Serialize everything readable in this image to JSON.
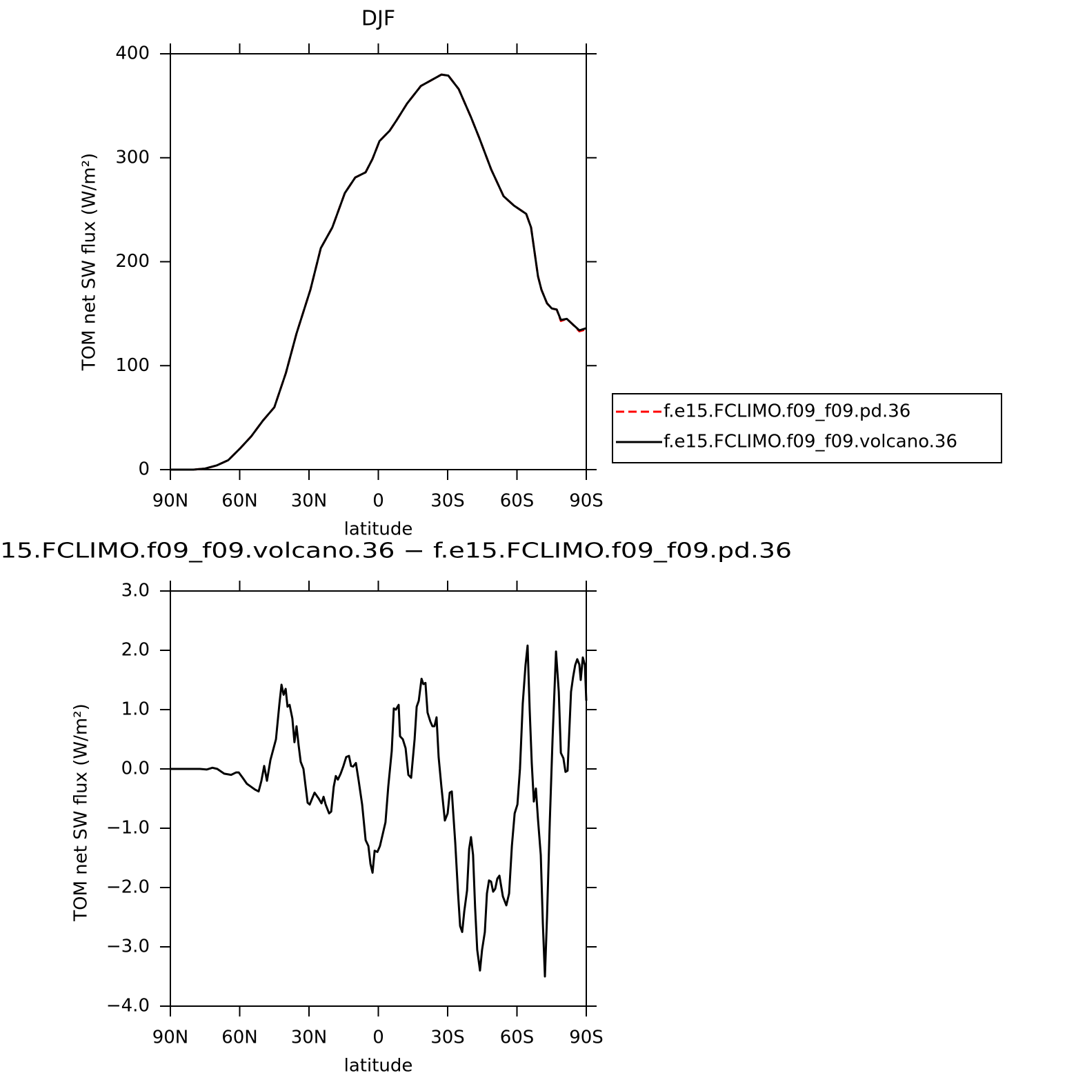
{
  "chart_data": [
    {
      "type": "line",
      "title": "DJF",
      "xlabel": "latitude",
      "ylabel": "TOM net SW flux (W/m²)",
      "x": [
        90,
        80,
        75,
        70,
        65,
        60,
        55,
        50,
        45,
        40,
        35.4,
        29.4,
        24.9,
        19.9,
        14.5,
        10,
        5.5,
        2.5,
        -0.5,
        -4.9,
        -7.9,
        -12.4,
        -18.4,
        -27.3,
        -30.3,
        -34.8,
        -40.1,
        -43.7,
        -48.8,
        -54.2,
        -58.7,
        -64,
        -66.1,
        -69.1,
        -70.6,
        -73,
        -75.1,
        -77.2,
        -79,
        -81.6,
        -84,
        -87,
        -90
      ],
      "series": [
        {
          "name": "f.e15.FCLIMO.f09_f09.pd.36",
          "color": "#ff0000",
          "linestyle": "dashed",
          "values": [
            0,
            0,
            1,
            4,
            9,
            20,
            32,
            47,
            60,
            93,
            131,
            173,
            213,
            233,
            266,
            281,
            286,
            299,
            316,
            326,
            336,
            352,
            369,
            380,
            379,
            366,
            339,
            319,
            289,
            263,
            254,
            246,
            233,
            186,
            173,
            160,
            155,
            154,
            143,
            145,
            140,
            133,
            135
          ]
        },
        {
          "name": "f.e15.FCLIMO.f09_f09.volcano.36",
          "color": "#000000",
          "linestyle": "solid",
          "values": [
            0,
            0,
            1,
            4,
            9,
            20,
            32,
            47,
            60,
            93,
            131,
            173,
            213,
            233,
            266,
            281,
            286,
            299,
            316,
            326,
            336,
            352,
            369,
            380,
            379,
            366,
            339,
            319,
            289,
            263,
            254,
            246,
            233,
            186,
            173,
            160,
            155,
            154,
            144,
            145,
            140,
            134,
            136
          ]
        }
      ],
      "xlim": [
        90,
        -90
      ],
      "xticks": [
        {
          "value": 90,
          "label": "90N"
        },
        {
          "value": 60,
          "label": "60N"
        },
        {
          "value": 30,
          "label": "30N"
        },
        0,
        {
          "value": -30,
          "label": "30S"
        },
        {
          "value": -60,
          "label": "60S"
        },
        {
          "value": -90,
          "label": "90S"
        }
      ],
      "ylim": [
        0,
        400
      ],
      "yticks": [
        0,
        100,
        200,
        300,
        400
      ],
      "grid": false,
      "legend": "right"
    },
    {
      "type": "line",
      "title": "15.FCLIMO.f09_f09.volcano.36 − f.e15.FCLIMO.f09_f09.pd.36",
      "xlabel": "latitude",
      "ylabel": "TOM net SW flux (W/m²)",
      "x": [
        90,
        77.2,
        74.2,
        71.8,
        69.7,
        66.7,
        63.7,
        61.6,
        60.4,
        58.7,
        56.9,
        55.1,
        53.3,
        51.8,
        50.6,
        49.4,
        48.2,
        46.7,
        44.3,
        42.8,
        41.9,
        41.0,
        40.1,
        39.3,
        38.4,
        37.2,
        36.3,
        35.4,
        34.5,
        33.6,
        32.4,
        30.6,
        29.7,
        27.6,
        25.8,
        24.6,
        23.7,
        22.8,
        21.3,
        20.4,
        19.3,
        18.4,
        17.5,
        16.3,
        15.1,
        13.9,
        12.7,
        11.8,
        10.9,
        9.7,
        8.5,
        7.0,
        5.5,
        4.3,
        3.4,
        2.5,
        1.6,
        0.4,
        -0.7,
        -1.9,
        -3.1,
        -4.3,
        -5.8,
        -6.7,
        -7.6,
        -8.8,
        -9.4,
        -10.6,
        -11.8,
        -13.0,
        -14.2,
        -15.7,
        -16.6,
        -17.5,
        -18.7,
        -19.5,
        -20.4,
        -21.3,
        -22.5,
        -23.4,
        -24.3,
        -25.2,
        -26.1,
        -27.3,
        -28.8,
        -30.0,
        -30.9,
        -31.8,
        -33.3,
        -34.5,
        -35.4,
        -36.3,
        -37.2,
        -38.4,
        -39.3,
        -40.1,
        -41.0,
        -41.9,
        -42.8,
        -44.0,
        -44.9,
        -46.1,
        -47.0,
        -47.9,
        -48.8,
        -49.7,
        -50.6,
        -51.5,
        -52.4,
        -53.9,
        -55.4,
        -56.6,
        -57.8,
        -59.0,
        -60.2,
        -61.3,
        -62.5,
        -63.7,
        -64.6,
        -65.5,
        -66.4,
        -67.3,
        -68.2,
        -69.1,
        -70.3,
        -71.2,
        -72.1,
        -73.0,
        -74.2,
        -75.4,
        -76.9,
        -78.1,
        -79.0,
        -80.1,
        -81.0,
        -81.9,
        -83.4,
        -84.3,
        -85.2,
        -86.1,
        -87.0,
        -87.6,
        -88.5,
        -89.4,
        -90
      ],
      "values": [
        0,
        0,
        -0.01,
        0.02,
        0,
        -0.08,
        -0.1,
        -0.06,
        -0.06,
        -0.15,
        -0.25,
        -0.3,
        -0.35,
        -0.38,
        -0.2,
        0.05,
        -0.2,
        0.15,
        0.5,
        1.1,
        1.42,
        1.25,
        1.35,
        1.05,
        1.08,
        0.85,
        0.45,
        0.72,
        0.4,
        0.12,
        0,
        -0.57,
        -0.6,
        -0.4,
        -0.5,
        -0.58,
        -0.47,
        -0.6,
        -0.75,
        -0.72,
        -0.3,
        -0.12,
        -0.18,
        -0.08,
        0.05,
        0.2,
        0.22,
        0.05,
        0.04,
        0.1,
        -0.2,
        -0.6,
        -1.2,
        -1.3,
        -1.6,
        -1.75,
        -1.38,
        -1.4,
        -1.3,
        -1.1,
        -0.9,
        -0.3,
        0.3,
        1.02,
        1.0,
        1.08,
        0.55,
        0.5,
        0.35,
        -0.1,
        -0.15,
        0.5,
        1.05,
        1.15,
        1.52,
        1.43,
        1.45,
        0.95,
        0.8,
        0.72,
        0.72,
        0.87,
        0.2,
        -0.3,
        -0.87,
        -0.75,
        -0.4,
        -0.38,
        -1.25,
        -2.1,
        -2.65,
        -2.75,
        -2.4,
        -2.05,
        -1.35,
        -1.15,
        -1.45,
        -2.35,
        -3.05,
        -3.4,
        -3.05,
        -2.75,
        -2.1,
        -1.88,
        -1.9,
        -2.07,
        -2.02,
        -1.85,
        -1.8,
        -2.15,
        -2.3,
        -2.1,
        -1.3,
        -0.75,
        -0.6,
        0,
        1.1,
        1.75,
        2.08,
        1.0,
        0.1,
        -0.55,
        -0.33,
        -0.85,
        -1.45,
        -2.6,
        -3.5,
        -2.5,
        -0.9,
        0.5,
        1.98,
        1.3,
        0.27,
        0.18,
        -0.05,
        -0.03,
        1.3,
        1.55,
        1.75,
        1.85,
        1.76,
        1.5,
        1.88,
        1.75,
        1.15
      ],
      "color": "#000000",
      "linestyle": "solid",
      "xlim": [
        90,
        -90
      ],
      "xticks": [
        {
          "value": 90,
          "label": "90N"
        },
        {
          "value": 60,
          "label": "60N"
        },
        {
          "value": 30,
          "label": "30N"
        },
        0,
        {
          "value": -30,
          "label": "30S"
        },
        {
          "value": -60,
          "label": "60S"
        },
        {
          "value": -90,
          "label": "90S"
        }
      ],
      "ylim": [
        -4,
        3
      ],
      "yticks": [
        {
          "value": 3,
          "label": "3.0"
        },
        {
          "value": 2,
          "label": "2.0"
        },
        {
          "value": 1,
          "label": "1.0"
        },
        {
          "value": 0,
          "label": "0.0"
        },
        {
          "value": -1,
          "label": "−1.0"
        },
        {
          "value": -2,
          "label": "−2.0"
        },
        {
          "value": -3,
          "label": "−3.0"
        },
        {
          "value": -4,
          "label": "−4.0"
        }
      ],
      "grid": false
    }
  ]
}
